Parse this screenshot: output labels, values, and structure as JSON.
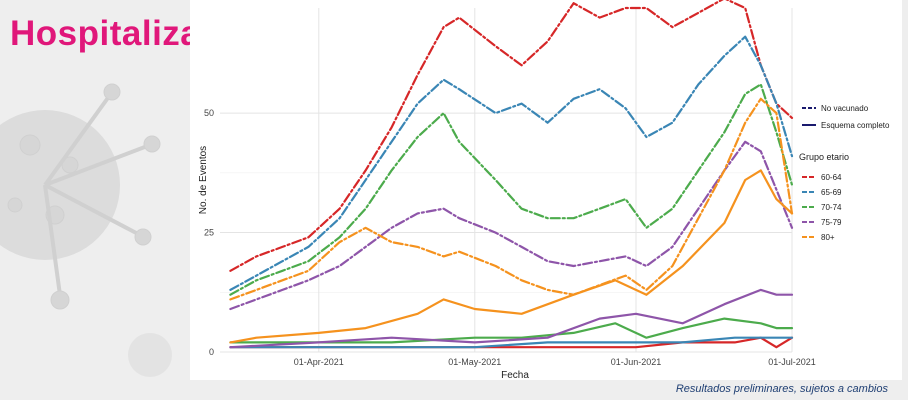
{
  "page_title": "Hospitalización",
  "footnote": "Resultados preliminares, sujetos a cambios",
  "chart_data": {
    "type": "line",
    "title": "",
    "xlabel": "Fecha",
    "ylabel": "No. de Eventos",
    "x_ticks": [
      "01-Apr-2021",
      "01-May-2021",
      "01-Jun-2021",
      "01-Jul-2021"
    ],
    "x_tick_dates": [
      "2021-04-01",
      "2021-05-01",
      "2021-06-01",
      "2021-07-01"
    ],
    "xlim": [
      "2021-03-13",
      "2021-07-01"
    ],
    "y_ticks": [
      0,
      25,
      50
    ],
    "ylim": [
      0,
      72
    ],
    "grid": true,
    "legend": {
      "position": "right",
      "linetype_entries": [
        {
          "label": "No vacunado",
          "style": "dashed"
        },
        {
          "label": "Esquema completo",
          "style": "solid"
        }
      ],
      "group_title": "Grupo etario",
      "groups": [
        {
          "label": "60-64",
          "color": "#d62728"
        },
        {
          "label": "65-69",
          "color": "#3a86b5"
        },
        {
          "label": "70-74",
          "color": "#4cab4c"
        },
        {
          "label": "75-79",
          "color": "#8e55a9"
        },
        {
          "label": "80+",
          "color": "#f5921e"
        }
      ]
    },
    "series": [
      {
        "group": "60-64",
        "status": "No vacunado",
        "color": "#d62728",
        "x": [
          "2021-03-15",
          "2021-03-20",
          "2021-03-25",
          "2021-03-30",
          "2021-04-05",
          "2021-04-10",
          "2021-04-15",
          "2021-04-20",
          "2021-04-25",
          "2021-04-28",
          "2021-05-05",
          "2021-05-10",
          "2021-05-15",
          "2021-05-20",
          "2021-05-25",
          "2021-05-30",
          "2021-06-03",
          "2021-06-08",
          "2021-06-13",
          "2021-06-18",
          "2021-06-22",
          "2021-06-25",
          "2021-06-28",
          "2021-07-01"
        ],
        "values": [
          17,
          20,
          22,
          24,
          30,
          38,
          47,
          58,
          68,
          70,
          64,
          60,
          65,
          73,
          70,
          72,
          72,
          68,
          71,
          74,
          72,
          60,
          52,
          49
        ]
      },
      {
        "group": "65-69",
        "status": "No vacunado",
        "color": "#3a86b5",
        "x": [
          "2021-03-15",
          "2021-03-20",
          "2021-03-25",
          "2021-03-30",
          "2021-04-05",
          "2021-04-10",
          "2021-04-15",
          "2021-04-20",
          "2021-04-25",
          "2021-04-28",
          "2021-05-05",
          "2021-05-10",
          "2021-05-15",
          "2021-05-20",
          "2021-05-25",
          "2021-05-30",
          "2021-06-03",
          "2021-06-08",
          "2021-06-13",
          "2021-06-18",
          "2021-06-22",
          "2021-06-25",
          "2021-06-28",
          "2021-07-01"
        ],
        "values": [
          13,
          16,
          19,
          22,
          28,
          36,
          44,
          52,
          57,
          55,
          50,
          52,
          48,
          53,
          55,
          51,
          45,
          48,
          56,
          62,
          66,
          60,
          52,
          41
        ]
      },
      {
        "group": "70-74",
        "status": "No vacunado",
        "color": "#4cab4c",
        "x": [
          "2021-03-15",
          "2021-03-20",
          "2021-03-25",
          "2021-03-30",
          "2021-04-05",
          "2021-04-10",
          "2021-04-15",
          "2021-04-20",
          "2021-04-25",
          "2021-04-28",
          "2021-05-05",
          "2021-05-10",
          "2021-05-15",
          "2021-05-20",
          "2021-05-25",
          "2021-05-30",
          "2021-06-03",
          "2021-06-08",
          "2021-06-13",
          "2021-06-18",
          "2021-06-22",
          "2021-06-25",
          "2021-06-28",
          "2021-07-01"
        ],
        "values": [
          12,
          15,
          17,
          19,
          24,
          30,
          38,
          45,
          50,
          44,
          36,
          30,
          28,
          28,
          30,
          32,
          26,
          30,
          38,
          46,
          54,
          56,
          46,
          35
        ]
      },
      {
        "group": "75-79",
        "status": "No vacunado",
        "color": "#8e55a9",
        "x": [
          "2021-03-15",
          "2021-03-20",
          "2021-03-25",
          "2021-03-30",
          "2021-04-05",
          "2021-04-10",
          "2021-04-15",
          "2021-04-20",
          "2021-04-25",
          "2021-04-28",
          "2021-05-05",
          "2021-05-10",
          "2021-05-15",
          "2021-05-20",
          "2021-05-25",
          "2021-05-30",
          "2021-06-03",
          "2021-06-08",
          "2021-06-13",
          "2021-06-18",
          "2021-06-22",
          "2021-06-25",
          "2021-06-28",
          "2021-07-01"
        ],
        "values": [
          9,
          11,
          13,
          15,
          18,
          22,
          26,
          29,
          30,
          28,
          25,
          22,
          19,
          18,
          19,
          20,
          18,
          22,
          30,
          38,
          44,
          42,
          34,
          26
        ]
      },
      {
        "group": "80+",
        "status": "No vacunado",
        "color": "#f5921e",
        "x": [
          "2021-03-15",
          "2021-03-20",
          "2021-03-25",
          "2021-03-30",
          "2021-04-05",
          "2021-04-10",
          "2021-04-15",
          "2021-04-20",
          "2021-04-25",
          "2021-04-28",
          "2021-05-05",
          "2021-05-10",
          "2021-05-15",
          "2021-05-20",
          "2021-05-25",
          "2021-05-30",
          "2021-06-03",
          "2021-06-08",
          "2021-06-13",
          "2021-06-18",
          "2021-06-22",
          "2021-06-25",
          "2021-06-28",
          "2021-07-01"
        ],
        "values": [
          11,
          13,
          15,
          17,
          23,
          26,
          23,
          22,
          20,
          21,
          18,
          15,
          13,
          12,
          14,
          16,
          13,
          18,
          28,
          38,
          48,
          53,
          50,
          29
        ]
      },
      {
        "group": "60-64",
        "status": "Esquema completo",
        "color": "#d62728",
        "x": [
          "2021-03-15",
          "2021-04-01",
          "2021-04-15",
          "2021-05-01",
          "2021-05-15",
          "2021-06-01",
          "2021-06-10",
          "2021-06-20",
          "2021-06-25",
          "2021-06-28",
          "2021-07-01"
        ],
        "values": [
          1,
          1,
          1,
          1,
          1,
          1,
          2,
          2,
          3,
          1,
          3
        ]
      },
      {
        "group": "65-69",
        "status": "Esquema completo",
        "color": "#3a86b5",
        "x": [
          "2021-03-15",
          "2021-04-01",
          "2021-04-15",
          "2021-05-01",
          "2021-05-15",
          "2021-06-01",
          "2021-06-10",
          "2021-06-20",
          "2021-06-25",
          "2021-06-28",
          "2021-07-01"
        ],
        "values": [
          1,
          1,
          1,
          1,
          2,
          2,
          2,
          3,
          3,
          3,
          3
        ]
      },
      {
        "group": "70-74",
        "status": "Esquema completo",
        "color": "#4cab4c",
        "x": [
          "2021-03-15",
          "2021-04-01",
          "2021-04-15",
          "2021-05-01",
          "2021-05-10",
          "2021-05-20",
          "2021-05-28",
          "2021-06-03",
          "2021-06-10",
          "2021-06-18",
          "2021-06-25",
          "2021-06-28",
          "2021-07-01"
        ],
        "values": [
          2,
          2,
          2,
          3,
          3,
          4,
          6,
          3,
          5,
          7,
          6,
          5,
          5
        ]
      },
      {
        "group": "75-79",
        "status": "Esquema completo",
        "color": "#8e55a9",
        "x": [
          "2021-03-15",
          "2021-04-01",
          "2021-04-15",
          "2021-05-01",
          "2021-05-15",
          "2021-05-25",
          "2021-06-01",
          "2021-06-10",
          "2021-06-18",
          "2021-06-25",
          "2021-06-28",
          "2021-07-01"
        ],
        "values": [
          1,
          2,
          3,
          2,
          3,
          7,
          8,
          6,
          10,
          13,
          12,
          12
        ]
      },
      {
        "group": "80+",
        "status": "Esquema completo",
        "color": "#f5921e",
        "x": [
          "2021-03-15",
          "2021-03-20",
          "2021-04-01",
          "2021-04-10",
          "2021-04-20",
          "2021-04-25",
          "2021-05-01",
          "2021-05-10",
          "2021-05-20",
          "2021-05-28",
          "2021-06-03",
          "2021-06-10",
          "2021-06-18",
          "2021-06-22",
          "2021-06-25",
          "2021-06-28",
          "2021-07-01"
        ],
        "values": [
          2,
          3,
          4,
          5,
          8,
          11,
          9,
          8,
          12,
          15,
          12,
          18,
          27,
          36,
          38,
          32,
          29
        ]
      }
    ]
  }
}
